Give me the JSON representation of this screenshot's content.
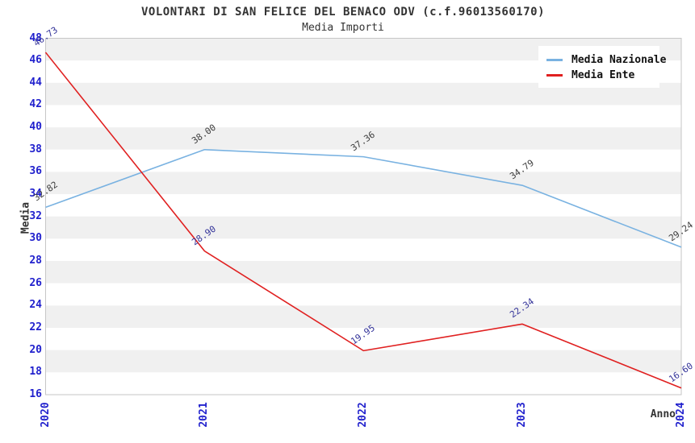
{
  "title": "VOLONTARI DI SAN FELICE DEL BENACO ODV (c.f.96013560170)",
  "subtitle": "Media Importi",
  "chart_data": {
    "type": "line",
    "categories": [
      "2020",
      "2021",
      "2022",
      "2023",
      "2024"
    ],
    "series": [
      {
        "name": "Media Nazionale",
        "values": [
          32.82,
          38.0,
          37.36,
          34.79,
          29.24
        ],
        "color": "#79b2e1",
        "label_color": "#3d3d3d"
      },
      {
        "name": "Media Ente",
        "values": [
          46.73,
          28.9,
          19.95,
          22.34,
          16.6
        ],
        "color": "#e02020",
        "label_color": "#333399"
      }
    ],
    "xlabel": "Anno",
    "ylabel": "Media",
    "ylim": [
      16,
      48
    ],
    "ytick_step": 2,
    "point_label_decimals": 2,
    "grid": "horizontal-bands",
    "legend_position": "top-right",
    "colors": {
      "tick_label": "#2121cd",
      "band": "#f0f0f0",
      "band_alt": "#ffffff",
      "plot_border": "#c6c6c6",
      "title_color": "#333333"
    }
  }
}
